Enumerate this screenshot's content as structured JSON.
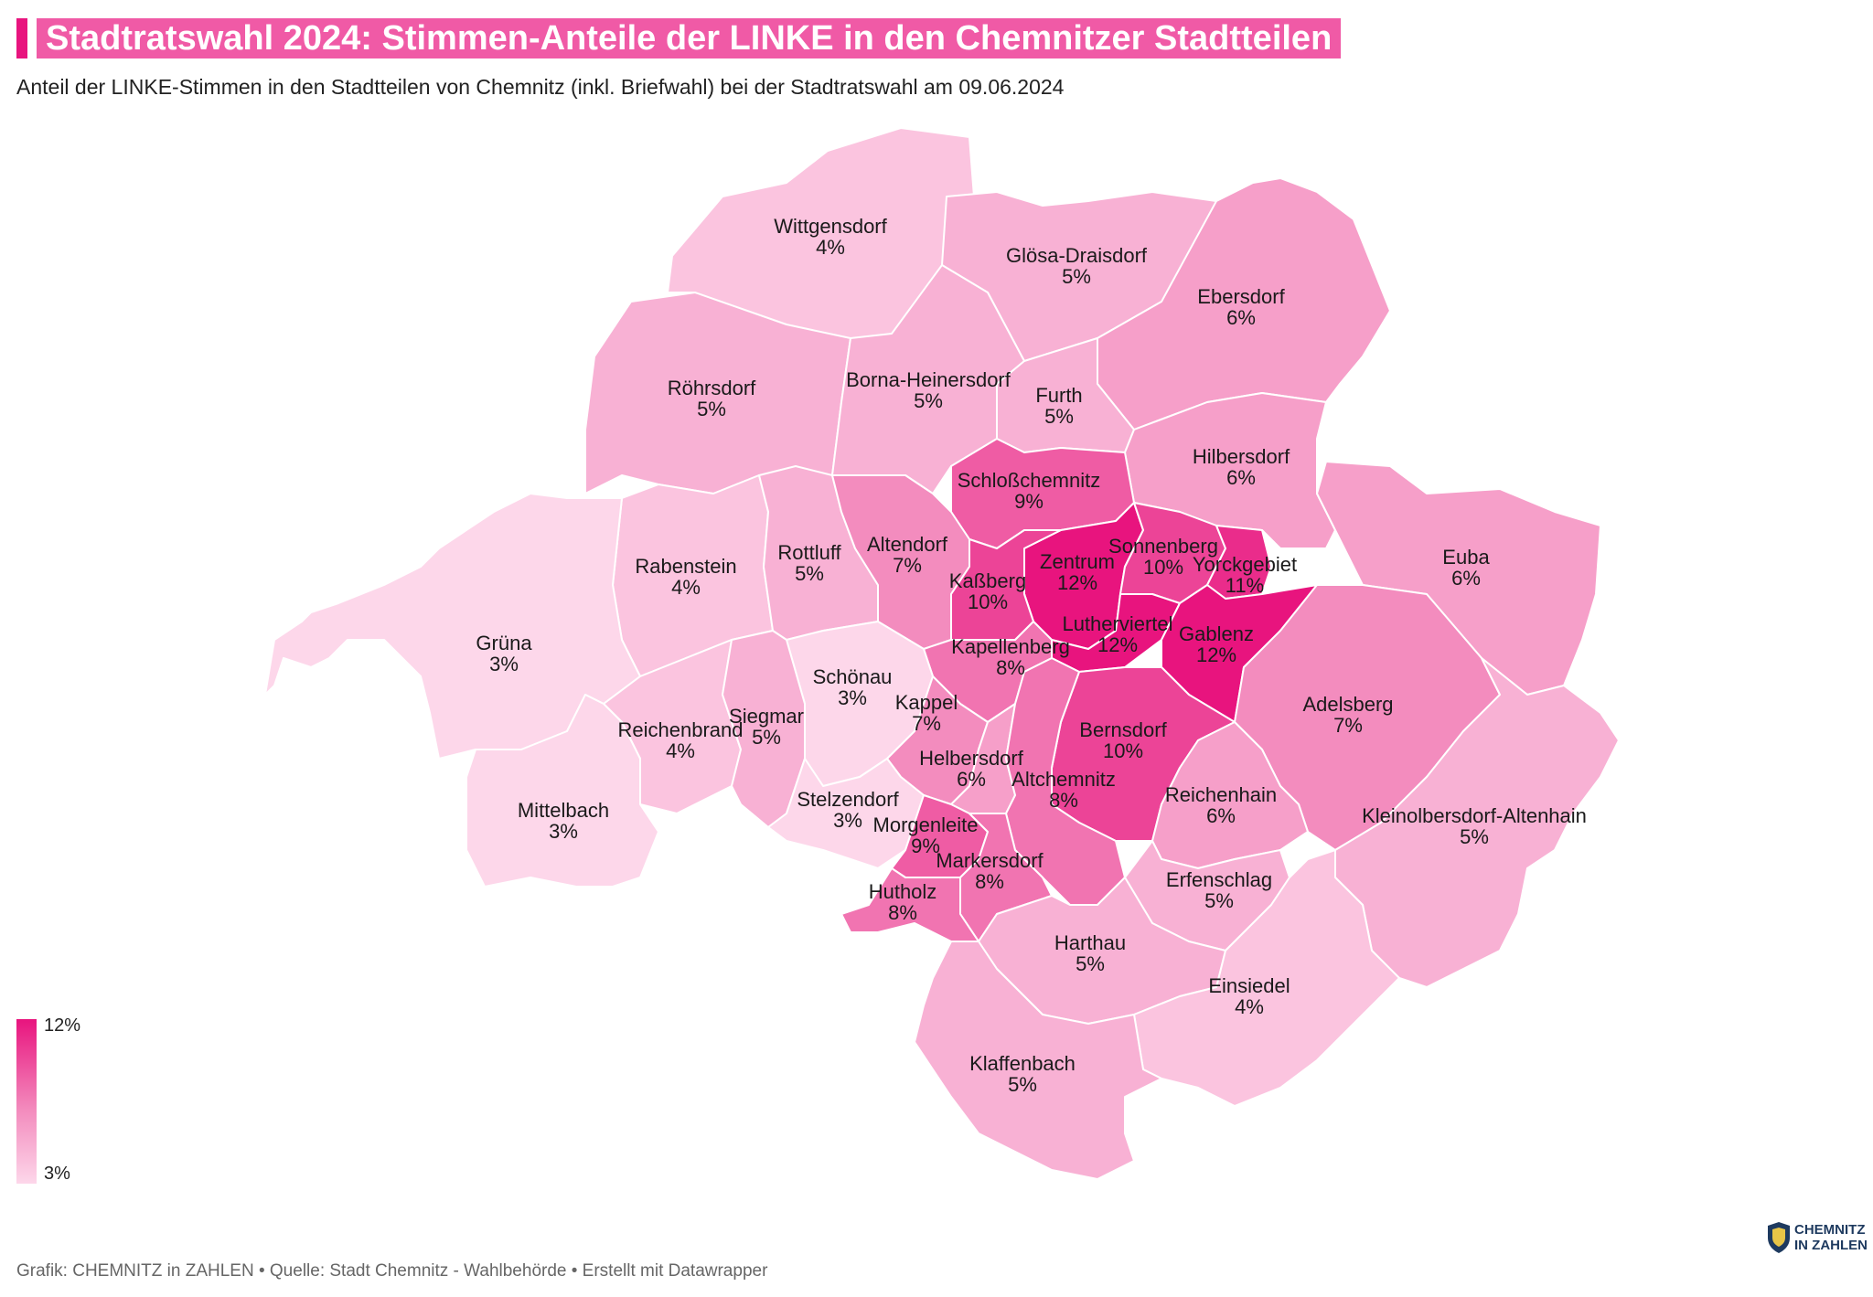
{
  "header": {
    "title": "Stadtratswahl 2024: Stimmen-Anteile der LINKE in den Chemnitzer Stadtteilen",
    "subtitle": "Anteil der LINKE-Stimmen in den Stadtteilen von Chemnitz (inkl. Briefwahl) bei der Stadtratswahl am 09.06.2024"
  },
  "colors": {
    "accent": "#e8147e",
    "title_bg": "#f05aa6",
    "scale_min": "#fdd7ea",
    "scale_max": "#e8147e"
  },
  "legend": {
    "max_label": "12%",
    "min_label": "3%",
    "min_value": 3,
    "max_value": 12
  },
  "districts": [
    {
      "name": "Wittgensdorf",
      "pct": "4%",
      "value": 4
    },
    {
      "name": "Glösa-Draisdorf",
      "pct": "5%",
      "value": 5
    },
    {
      "name": "Ebersdorf",
      "pct": "6%",
      "value": 6
    },
    {
      "name": "Röhrsdorf",
      "pct": "5%",
      "value": 5
    },
    {
      "name": "Borna-Heinersdorf",
      "pct": "5%",
      "value": 5
    },
    {
      "name": "Furth",
      "pct": "5%",
      "value": 5
    },
    {
      "name": "Hilbersdorf",
      "pct": "6%",
      "value": 6
    },
    {
      "name": "Schloßchemnitz",
      "pct": "9%",
      "value": 9
    },
    {
      "name": "Euba",
      "pct": "6%",
      "value": 6
    },
    {
      "name": "Rabenstein",
      "pct": "4%",
      "value": 4
    },
    {
      "name": "Rottluff",
      "pct": "5%",
      "value": 5
    },
    {
      "name": "Altendorf",
      "pct": "7%",
      "value": 7
    },
    {
      "name": "Zentrum",
      "pct": "12%",
      "value": 12
    },
    {
      "name": "Sonnenberg",
      "pct": "10%",
      "value": 10
    },
    {
      "name": "Yorckgebiet",
      "pct": "11%",
      "value": 11
    },
    {
      "name": "Kaßberg",
      "pct": "10%",
      "value": 10
    },
    {
      "name": "Lutherviertel",
      "pct": "12%",
      "value": 12
    },
    {
      "name": "Gablenz",
      "pct": "12%",
      "value": 12
    },
    {
      "name": "Grüna",
      "pct": "3%",
      "value": 3
    },
    {
      "name": "Kapellenberg",
      "pct": "8%",
      "value": 8
    },
    {
      "name": "Schönau",
      "pct": "3%",
      "value": 3
    },
    {
      "name": "Adelsberg",
      "pct": "7%",
      "value": 7
    },
    {
      "name": "Kappel",
      "pct": "7%",
      "value": 7
    },
    {
      "name": "Reichenbrand",
      "pct": "4%",
      "value": 4
    },
    {
      "name": "Siegmar",
      "pct": "5%",
      "value": 5
    },
    {
      "name": "Bernsdorf",
      "pct": "10%",
      "value": 10
    },
    {
      "name": "Helbersdorf",
      "pct": "6%",
      "value": 6
    },
    {
      "name": "Altchemnitz",
      "pct": "8%",
      "value": 8
    },
    {
      "name": "Reichenhain",
      "pct": "6%",
      "value": 6
    },
    {
      "name": "Kleinolbersdorf-Altenhain",
      "pct": "5%",
      "value": 5
    },
    {
      "name": "Mittelbach",
      "pct": "3%",
      "value": 3
    },
    {
      "name": "Stelzendorf",
      "pct": "3%",
      "value": 3
    },
    {
      "name": "Morgenleite",
      "pct": "9%",
      "value": 9
    },
    {
      "name": "Markersdorf",
      "pct": "8%",
      "value": 8
    },
    {
      "name": "Erfenschlag",
      "pct": "5%",
      "value": 5
    },
    {
      "name": "Hutholz",
      "pct": "8%",
      "value": 8
    },
    {
      "name": "Harthau",
      "pct": "5%",
      "value": 5
    },
    {
      "name": "Einsiedel",
      "pct": "4%",
      "value": 4
    },
    {
      "name": "Klaffenbach",
      "pct": "5%",
      "value": 5
    }
  ],
  "footer": {
    "credit": "Grafik: CHEMNITZ in ZAHLEN • Quelle: Stadt Chemnitz - Wahlbehörde • Erstellt mit Datawrapper"
  },
  "logo": {
    "line1": "CHEMNITZ",
    "line2": "IN ZAHLEN"
  }
}
